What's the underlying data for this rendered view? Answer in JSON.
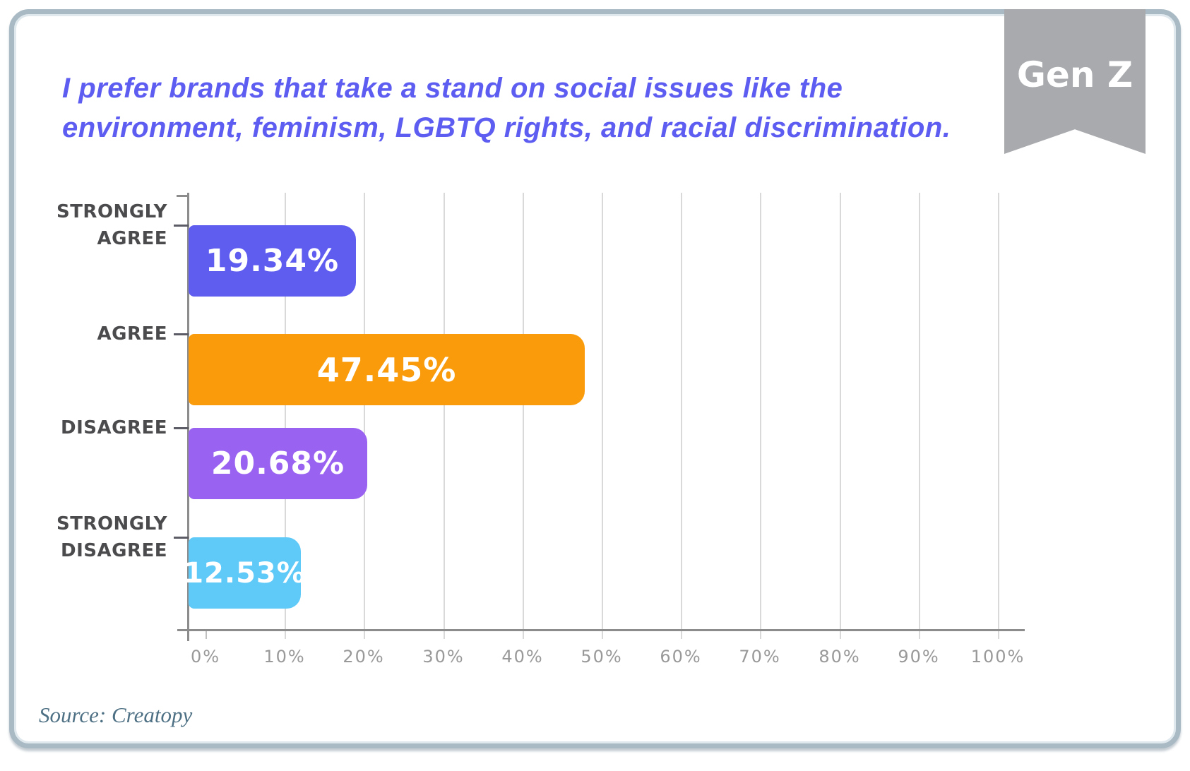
{
  "header": {
    "title_lines": [
      "I prefer brands that take a stand on social issues like the",
      "environment, feminism, LGBTQ rights, and racial discrimination."
    ],
    "badge": "Gen Z"
  },
  "chart_data": {
    "type": "bar",
    "orientation": "horizontal",
    "title": "I prefer brands that take a stand on social issues like the environment, feminism, LGBTQ rights, and racial discrimination.",
    "categories": [
      "STRONGLY AGREE",
      "AGREE",
      "DISAGREE",
      "STRONGLY DISAGREE"
    ],
    "category_lines": [
      [
        "STRONGLY",
        "AGREE"
      ],
      [
        "AGREE"
      ],
      [
        "DISAGREE"
      ],
      [
        "STRONGLY",
        "DISAGREE"
      ]
    ],
    "values": [
      19.34,
      47.45,
      20.68,
      12.53
    ],
    "value_labels": [
      "19.34%",
      "47.45%",
      "20.68%",
      "12.53%"
    ],
    "bar_colors": [
      "#5f5cf0",
      "#f99b0a",
      "#9a62f1",
      "#5fc9f8"
    ],
    "xlabel": "",
    "ylabel": "",
    "xlim": [
      0,
      100
    ],
    "x_ticks": [
      "0%",
      "10%",
      "20%",
      "30%",
      "40%",
      "50%",
      "60%",
      "70%",
      "80%",
      "90%",
      "100%"
    ],
    "grid": true,
    "legend": "none"
  },
  "footer": {
    "source": "Source: Creatopy"
  },
  "colors": {
    "title_text": "#5e5df1",
    "badge_bg": "#a8aaad",
    "badge_text": "#ffffff",
    "card_border": "#a9bac4",
    "axis": "#8c8c8c",
    "gridline": "#d9d9d9",
    "category_text": "#4b4b4d",
    "tick_label_text": "#999999",
    "value_text": "#ffffff",
    "source_text": "#4e7084"
  }
}
